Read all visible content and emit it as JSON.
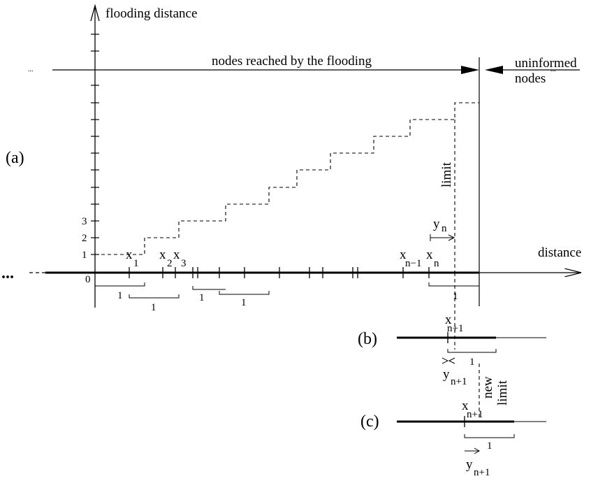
{
  "labels": {
    "y_axis": "flooding distance",
    "x_axis": "distance",
    "reached": "nodes reached by the flooding",
    "uninformed_1": "uninformed",
    "uninformed_2": "nodes",
    "panel_a": "(a)",
    "panel_b": "(b)",
    "panel_c": "(c)",
    "limit": "limit",
    "new_limit_1": "new",
    "new_limit_2": "limit",
    "ellipsis_left": "...",
    "ellipsis_axis": "...",
    "ellipsis_right": "..."
  },
  "y_ticks": [
    "0",
    "1",
    "2",
    "3"
  ],
  "unit": "1",
  "nodes": {
    "x1": {
      "base": "x",
      "sub": "1"
    },
    "x2": {
      "base": "x",
      "sub": "2"
    },
    "x3": {
      "base": "x",
      "sub": "3"
    },
    "xn1": {
      "base": "x",
      "sub": "n−1"
    },
    "xn": {
      "base": "x",
      "sub": "n"
    },
    "yn": {
      "base": "y",
      "sub": "n"
    },
    "xb": {
      "base": "x",
      "sub": "n+1"
    },
    "yb": {
      "base": "y",
      "sub": "n+1"
    },
    "xc": {
      "base": "x",
      "sub": "n+1"
    },
    "yc": {
      "base": "y",
      "sub": "n+1"
    }
  }
}
